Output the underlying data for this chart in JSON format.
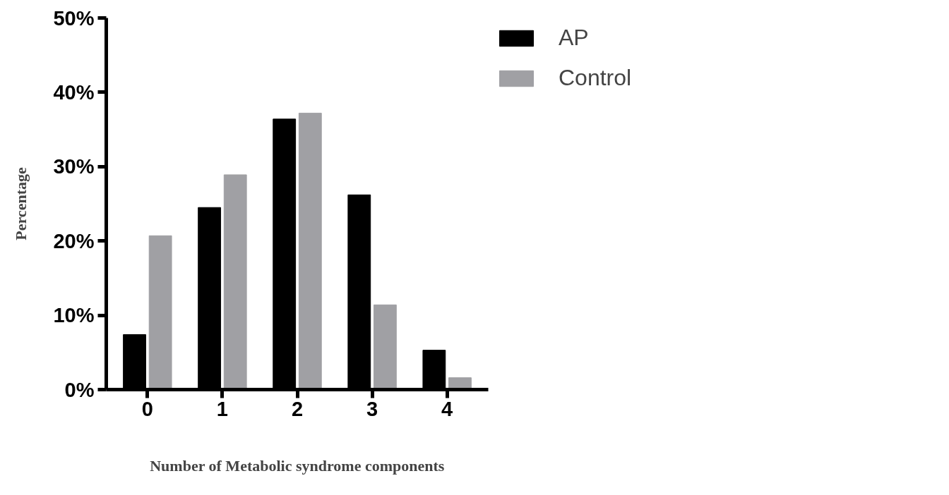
{
  "chart_data": {
    "type": "bar",
    "xlabel": "Number of Metabolic syndrome components",
    "ylabel": "Percentage",
    "categories": [
      "0",
      "1",
      "2",
      "3",
      "4"
    ],
    "series": [
      {
        "name": "AP",
        "color": "#000000",
        "values": [
          7.4,
          24.5,
          36.4,
          26.2,
          5.3
        ]
      },
      {
        "name": "Control",
        "color": "#a0a0a4",
        "values": [
          20.7,
          28.9,
          37.2,
          11.4,
          1.6
        ]
      }
    ],
    "ylim": [
      0,
      50
    ],
    "yticks": [
      {
        "value": 0,
        "label": "0%"
      },
      {
        "value": 10,
        "label": "10%"
      },
      {
        "value": 20,
        "label": "20%"
      },
      {
        "value": 30,
        "label": "30%"
      },
      {
        "value": 40,
        "label": "40%"
      },
      {
        "value": 50,
        "label": "50%"
      }
    ],
    "grid": false,
    "legend": "top right"
  }
}
